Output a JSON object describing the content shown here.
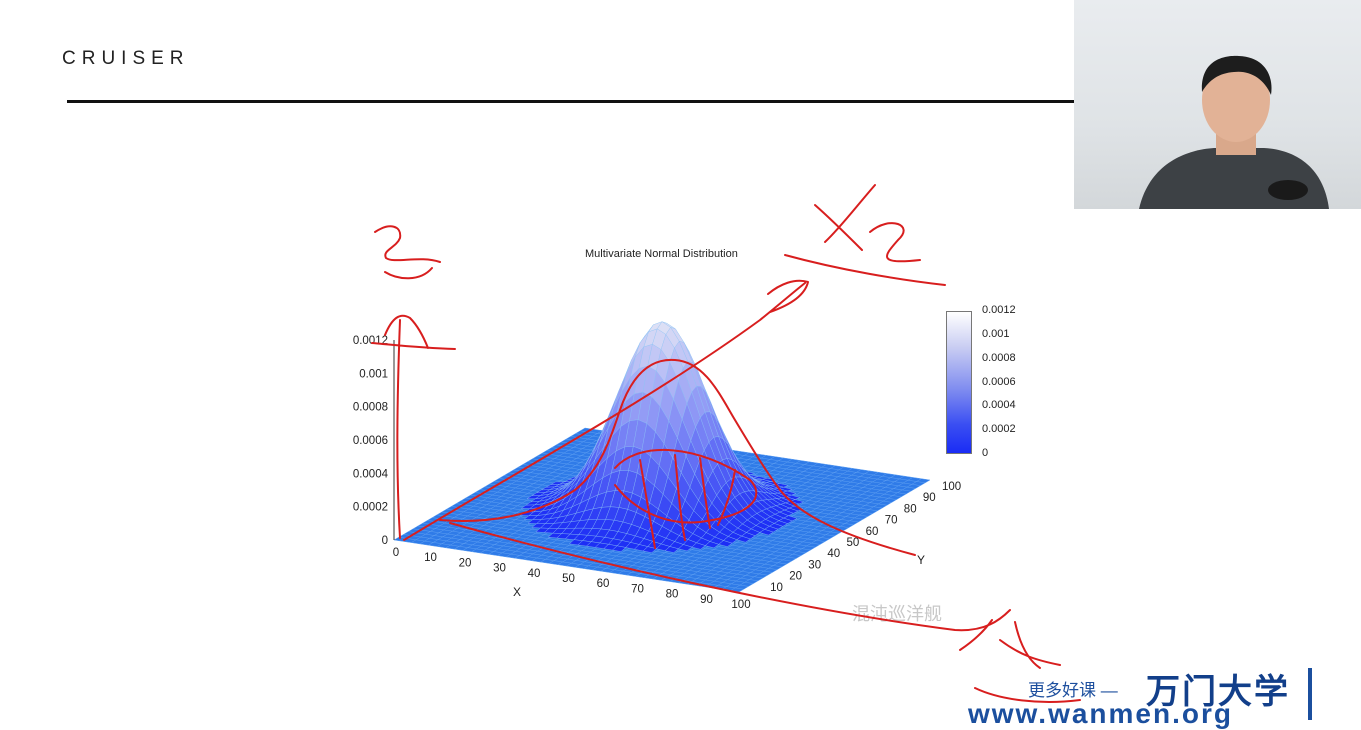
{
  "header": {
    "logo_text": "CRUISER"
  },
  "chart_data": {
    "type": "surface3d",
    "title": "Multivariate Normal Distribution",
    "xlabel": "X",
    "ylabel": "Y",
    "zlabel": "",
    "x_ticks": [
      "0",
      "10",
      "20",
      "30",
      "40",
      "50",
      "60",
      "70",
      "80",
      "90",
      "100"
    ],
    "y_ticks": [
      "10",
      "20",
      "30",
      "40",
      "50",
      "60",
      "70",
      "80",
      "90",
      "100"
    ],
    "z_ticks": [
      "0",
      "0.0002",
      "0.0004",
      "0.0006",
      "0.0008",
      "0.001",
      "0.0012"
    ],
    "xlim": [
      0,
      100
    ],
    "ylim": [
      0,
      100
    ],
    "zlim": [
      0,
      0.0012
    ],
    "colorbar_ticks": [
      "0.0012",
      "0.001",
      "0.0008",
      "0.0006",
      "0.0004",
      "0.0002",
      "0"
    ],
    "peak": {
      "x": 50,
      "y": 50,
      "z": 0.00113
    },
    "colors": {
      "low": "#1a2cf5",
      "high": "#ffffff"
    }
  },
  "watermark": {
    "text": "混沌巡洋舰"
  },
  "brand": {
    "slogan": "更多好课 —",
    "name": "万门大学",
    "url": "www.wanmen.org"
  },
  "annotations": {
    "x2_label": "X2",
    "x1_label": "X1",
    "z_label": "Z"
  },
  "webcam": {
    "presenter": "presenter-video"
  }
}
